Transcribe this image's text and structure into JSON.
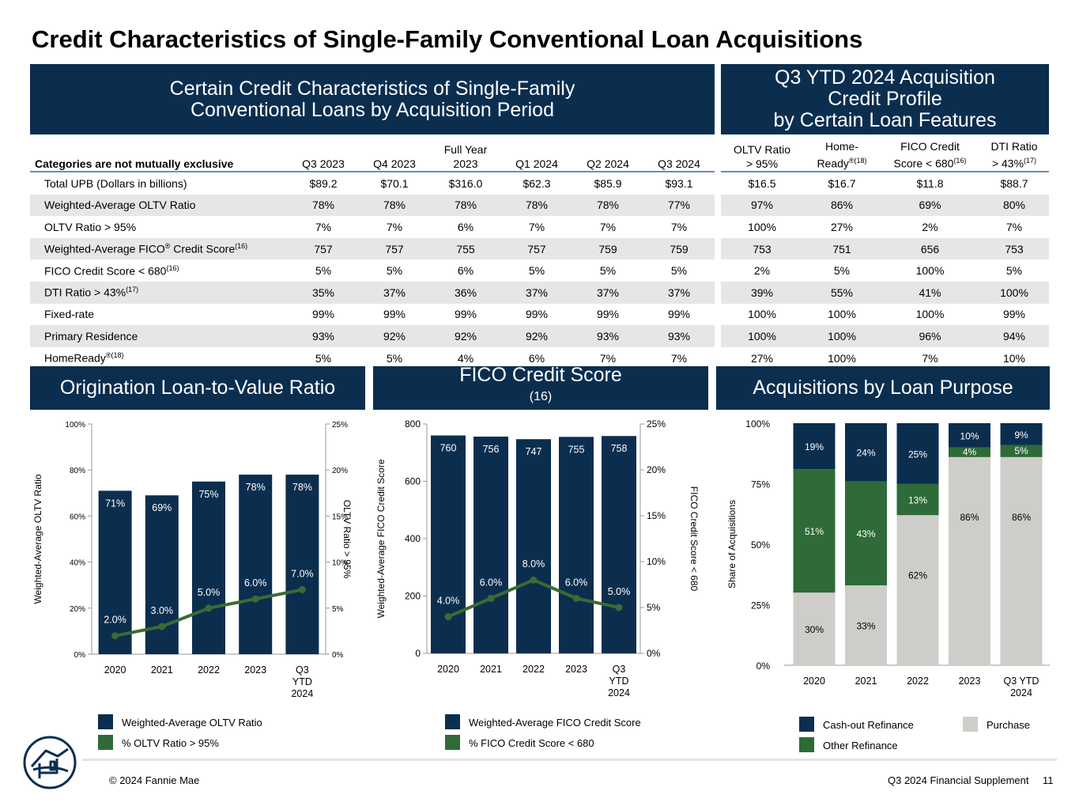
{
  "title": "Credit Characteristics of Single-Family Conventional Loan Acquisitions",
  "banner_left": [
    "Certain Credit Characteristics of Single-Family",
    "Conventional Loans by Acquisition Period"
  ],
  "banner_right": [
    "Q3 YTD 2024 Acquisition",
    "Credit Profile",
    "by Certain Loan Features"
  ],
  "table_left": {
    "first_header": "Categories are not mutually exclusive",
    "columns": [
      "Q3 2023",
      "Q4 2023",
      "Full Year",
      "2023",
      "Q1 2024",
      "Q2 2024",
      "Q3 2024"
    ],
    "rows": [
      {
        "label": "Total UPB (Dollars in billions)",
        "sup": "",
        "values": [
          "$89.2",
          "$70.1",
          "$316.0",
          "$62.3",
          "$85.9",
          "$93.1"
        ]
      },
      {
        "label": "Weighted-Average OLTV Ratio",
        "sup": "",
        "values": [
          "78%",
          "78%",
          "78%",
          "78%",
          "78%",
          "77%"
        ]
      },
      {
        "label": "OLTV Ratio > 95%",
        "sup": "",
        "values": [
          "7%",
          "7%",
          "6%",
          "7%",
          "7%",
          "7%"
        ]
      },
      {
        "label": "Weighted-Average FICO",
        "reg": "®",
        "label2": " Credit Score",
        "sup": "(16)",
        "values": [
          "757",
          "757",
          "755",
          "757",
          "759",
          "759"
        ]
      },
      {
        "label": "FICO Credit Score < 680",
        "sup": "(16)",
        "values": [
          "5%",
          "5%",
          "6%",
          "5%",
          "5%",
          "5%"
        ]
      },
      {
        "label": "DTI Ratio > 43%",
        "sup": "(17)",
        "values": [
          "35%",
          "37%",
          "36%",
          "37%",
          "37%",
          "37%"
        ]
      },
      {
        "label": "Fixed-rate",
        "sup": "",
        "values": [
          "99%",
          "99%",
          "99%",
          "99%",
          "99%",
          "99%"
        ]
      },
      {
        "label": "Primary Residence",
        "sup": "",
        "values": [
          "93%",
          "92%",
          "92%",
          "92%",
          "93%",
          "93%"
        ]
      },
      {
        "label": "HomeReady",
        "sup": "®(18)",
        "values": [
          "5%",
          "5%",
          "4%",
          "6%",
          "7%",
          "7%"
        ]
      }
    ]
  },
  "table_right": {
    "headers": [
      {
        "l1": "OLTV Ratio",
        "l2": "> 95%",
        "sup": ""
      },
      {
        "l1": "Home-",
        "l2": "Ready",
        "sup": "®(18)"
      },
      {
        "l1": "FICO Credit",
        "l2": "Score < 680",
        "sup": "(16)"
      },
      {
        "l1": "DTI Ratio",
        "l2": "> 43%",
        "sup": "(17)"
      }
    ],
    "rows": [
      [
        "$16.5",
        "$16.7",
        "$11.8",
        "$88.7"
      ],
      [
        "97%",
        "86%",
        "69%",
        "80%"
      ],
      [
        "100%",
        "27%",
        "2%",
        "7%"
      ],
      [
        "753",
        "751",
        "656",
        "753"
      ],
      [
        "2%",
        "5%",
        "100%",
        "5%"
      ],
      [
        "39%",
        "55%",
        "41%",
        "100%"
      ],
      [
        "100%",
        "100%",
        "100%",
        "99%"
      ],
      [
        "100%",
        "100%",
        "96%",
        "94%"
      ],
      [
        "27%",
        "100%",
        "7%",
        "10%"
      ]
    ]
  },
  "panel_titles": {
    "oltv": "Origination Loan-to-Value Ratio",
    "fico": "FICO Credit Score",
    "fico_sup": "(16)",
    "purpose": "Acquisitions by Loan Purpose"
  },
  "colors": {
    "navy": "#0b2e4f",
    "green": "#2e6b38",
    "gray": "#cfcdc9",
    "line_green": "#3a6b34"
  },
  "chart_data": [
    {
      "type": "bar",
      "name": "oltv",
      "categories": [
        "2020",
        "2021",
        "2022",
        "2023",
        "Q3 YTD 2024"
      ],
      "category_lines": [
        [
          "2020"
        ],
        [
          "2021"
        ],
        [
          "2022"
        ],
        [
          "2023"
        ],
        [
          "Q3",
          "YTD",
          "2024"
        ]
      ],
      "series": [
        {
          "name": "Weighted-Average OLTV Ratio",
          "values": [
            71,
            69,
            75,
            78,
            78
          ],
          "labels": [
            "71%",
            "69%",
            "75%",
            "78%",
            "78%"
          ],
          "axis": "left"
        },
        {
          "name": "% OLTV Ratio > 95%",
          "values": [
            2.0,
            3.0,
            5.0,
            6.0,
            7.0
          ],
          "labels": [
            "2.0%",
            "3.0%",
            "5.0%",
            "6.0%",
            "7.0%"
          ],
          "axis": "right",
          "type": "line"
        }
      ],
      "ylabel": "Weighted-Average OLTV Ratio",
      "y2label": "OLTV Ratio > 95%",
      "ylim": [
        0,
        100
      ],
      "y2lim": [
        0,
        25
      ],
      "yticks": [
        "0%",
        "20%",
        "40%",
        "60%",
        "80%",
        "100%"
      ],
      "y2ticks": [
        "0%",
        "5%",
        "10%",
        "15%",
        "20%",
        "25%"
      ]
    },
    {
      "type": "bar",
      "name": "fico",
      "categories": [
        "2020",
        "2021",
        "2022",
        "2023",
        "Q3 YTD 2024"
      ],
      "category_lines": [
        [
          "2020"
        ],
        [
          "2021"
        ],
        [
          "2022"
        ],
        [
          "2023"
        ],
        [
          "Q3",
          "YTD",
          "2024"
        ]
      ],
      "series": [
        {
          "name": "Weighted-Average FICO Credit Score",
          "values": [
            760,
            756,
            747,
            755,
            758
          ],
          "labels": [
            "760",
            "756",
            "747",
            "755",
            "758"
          ],
          "axis": "left"
        },
        {
          "name": "% FICO Credit Score < 680",
          "values": [
            4.0,
            6.0,
            8.0,
            6.0,
            5.0
          ],
          "labels": [
            "4.0%",
            "6.0%",
            "8.0%",
            "6.0%",
            "5.0%"
          ],
          "axis": "right",
          "type": "line"
        }
      ],
      "ylabel": "Weighted-Average FICO Credit Score",
      "y2label": "FICO Credit Score < 680",
      "ylim": [
        0,
        800
      ],
      "y2lim": [
        0,
        25
      ],
      "yticks": [
        "0",
        "200",
        "400",
        "600",
        "800"
      ],
      "y2ticks": [
        "0%",
        "5%",
        "10%",
        "15%",
        "20%",
        "25%"
      ]
    },
    {
      "type": "bar",
      "stacked": true,
      "name": "purpose",
      "categories": [
        "2020",
        "2021",
        "2022",
        "2023",
        "Q3 YTD 2024"
      ],
      "category_lines": [
        [
          "2020"
        ],
        [
          "2021"
        ],
        [
          "2022"
        ],
        [
          "2023"
        ],
        [
          "Q3 YTD",
          "2024"
        ]
      ],
      "series": [
        {
          "name": "Purchase",
          "values": [
            30,
            33,
            62,
            86,
            86
          ],
          "labels": [
            "30%",
            "33%",
            "62%",
            "86%",
            "86%"
          ]
        },
        {
          "name": "Other Refinance",
          "values": [
            51,
            43,
            13,
            4,
            5
          ],
          "labels": [
            "51%",
            "43%",
            "13%",
            "4%",
            "5%"
          ]
        },
        {
          "name": "Cash-out Refinance",
          "values": [
            19,
            24,
            25,
            10,
            9
          ],
          "labels": [
            "19%",
            "24%",
            "25%",
            "10%",
            "9%"
          ]
        }
      ],
      "ylabel": "Share of Acquisitions",
      "ylim": [
        0,
        100
      ],
      "yticks": [
        "0%",
        "25%",
        "50%",
        "75%",
        "100%"
      ]
    }
  ],
  "legends": {
    "oltv": [
      "Weighted-Average OLTV Ratio",
      "% OLTV Ratio > 95%"
    ],
    "fico": [
      "Weighted-Average FICO Credit Score",
      "% FICO Credit Score < 680"
    ],
    "purpose": [
      "Cash-out Refinance",
      "Other Refinance",
      "Purchase"
    ]
  },
  "footer": {
    "copyright": "© 2024 Fannie Mae",
    "supplement": "Q3 2024 Financial Supplement",
    "page": "11"
  }
}
